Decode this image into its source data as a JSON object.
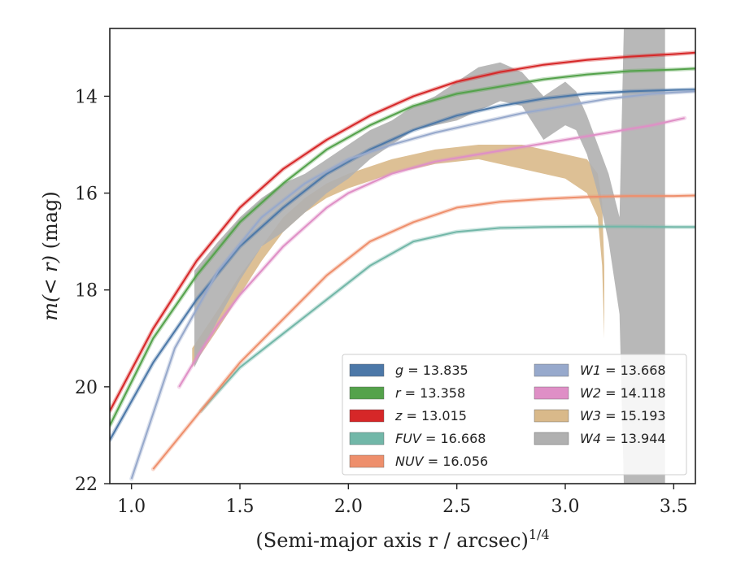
{
  "chart_data": {
    "type": "line",
    "xlabel": "(Semi-major axis r / arcsec)",
    "xlabel_exponent": "1/4",
    "ylabel_main": "m(< r)",
    "ylabel_unit": " (mag)",
    "xlim": [
      0.9,
      3.6
    ],
    "ylim": [
      22,
      12.6
    ],
    "y_inverted": true,
    "x_ticks": [
      "1.0",
      "1.5",
      "2.0",
      "2.5",
      "3.0",
      "3.5"
    ],
    "x_tick_values": [
      1.0,
      1.5,
      2.0,
      2.5,
      3.0,
      3.5
    ],
    "y_ticks": [
      "14",
      "16",
      "18",
      "20",
      "22"
    ],
    "y_tick_values": [
      14,
      16,
      18,
      20,
      22
    ],
    "legend_position": "lower-right",
    "series": [
      {
        "name": "g = 13.835",
        "label_var": "g",
        "label_val": "13.835",
        "kind": "line",
        "color": "#4c78a8",
        "x": [
          0.9,
          1.1,
          1.3,
          1.5,
          1.7,
          1.9,
          2.1,
          2.3,
          2.5,
          2.7,
          2.9,
          3.1,
          3.3,
          3.5,
          3.6
        ],
        "y": [
          21.1,
          19.5,
          18.2,
          17.1,
          16.3,
          15.6,
          15.1,
          14.7,
          14.4,
          14.2,
          14.05,
          13.95,
          13.9,
          13.87,
          13.86
        ]
      },
      {
        "name": "r = 13.358",
        "label_var": "r",
        "label_val": "13.358",
        "kind": "line",
        "color": "#54a24b",
        "x": [
          0.9,
          1.1,
          1.3,
          1.5,
          1.7,
          1.9,
          2.1,
          2.3,
          2.5,
          2.7,
          2.9,
          3.1,
          3.3,
          3.5,
          3.6
        ],
        "y": [
          20.8,
          19.0,
          17.7,
          16.6,
          15.8,
          15.1,
          14.6,
          14.2,
          13.95,
          13.8,
          13.65,
          13.55,
          13.48,
          13.45,
          13.43
        ]
      },
      {
        "name": "z = 13.015",
        "label_var": "z",
        "label_val": "13.015",
        "kind": "line",
        "color": "#d62728",
        "x": [
          0.9,
          1.1,
          1.3,
          1.5,
          1.7,
          1.9,
          2.1,
          2.3,
          2.5,
          2.7,
          2.9,
          3.1,
          3.3,
          3.5,
          3.6
        ],
        "y": [
          20.5,
          18.8,
          17.4,
          16.3,
          15.5,
          14.9,
          14.4,
          14.0,
          13.7,
          13.5,
          13.35,
          13.25,
          13.18,
          13.13,
          13.1
        ]
      },
      {
        "name": "FUV = 16.668",
        "label_var": "FUV",
        "label_val": "16.668",
        "kind": "line",
        "color": "#72b7a8",
        "x": [
          1.32,
          1.5,
          1.7,
          1.9,
          2.1,
          2.3,
          2.5,
          2.7,
          2.9,
          3.1,
          3.3,
          3.5,
          3.6
        ],
        "y": [
          20.5,
          19.6,
          18.9,
          18.2,
          17.5,
          17.0,
          16.8,
          16.72,
          16.7,
          16.69,
          16.69,
          16.7,
          16.7
        ]
      },
      {
        "name": "NUV = 16.056",
        "label_var": "NUV",
        "label_val": "16.056",
        "kind": "line",
        "color": "#ee8f6c",
        "x": [
          1.1,
          1.3,
          1.5,
          1.7,
          1.9,
          2.1,
          2.3,
          2.5,
          2.7,
          2.9,
          3.1,
          3.3,
          3.5,
          3.6
        ],
        "y": [
          21.7,
          20.6,
          19.5,
          18.6,
          17.7,
          17.0,
          16.6,
          16.3,
          16.18,
          16.12,
          16.08,
          16.06,
          16.06,
          16.05
        ]
      },
      {
        "name": "W1 = 13.668",
        "label_var": "W1",
        "label_val": "13.668",
        "kind": "line",
        "color": "#97a9cc",
        "x": [
          1.0,
          1.2,
          1.4,
          1.6,
          1.8,
          2.0,
          2.2,
          2.4,
          2.6,
          2.8,
          3.0,
          3.2,
          3.4,
          3.6
        ],
        "y": [
          21.9,
          19.2,
          17.6,
          16.5,
          15.8,
          15.3,
          15.0,
          14.75,
          14.55,
          14.35,
          14.2,
          14.05,
          13.95,
          13.9
        ]
      },
      {
        "name": "W2 = 14.118",
        "label_var": "W2",
        "label_val": "14.118",
        "kind": "line",
        "color": "#df8fc6",
        "x": [
          1.22,
          1.3,
          1.4,
          1.5,
          1.6,
          1.7,
          1.8,
          1.9,
          2.0,
          2.2,
          2.4,
          2.6,
          2.8,
          3.0,
          3.2,
          3.4,
          3.55
        ],
        "y": [
          20.0,
          19.4,
          18.7,
          18.1,
          17.6,
          17.1,
          16.7,
          16.3,
          16.0,
          15.6,
          15.35,
          15.2,
          15.05,
          14.9,
          14.75,
          14.6,
          14.45
        ]
      },
      {
        "name": "W3 = 15.193",
        "label_var": "W3",
        "label_val": "15.193",
        "kind": "band",
        "color": "#d9b98a",
        "x": [
          1.28,
          1.4,
          1.5,
          1.6,
          1.7,
          1.8,
          1.9,
          2.0,
          2.2,
          2.4,
          2.6,
          2.8,
          3.0,
          3.1,
          3.15,
          3.17,
          3.18
        ],
        "y_lo": [
          19.6,
          18.8,
          18.1,
          17.4,
          16.8,
          16.4,
          16.1,
          15.9,
          15.6,
          15.4,
          15.3,
          15.5,
          15.7,
          16.0,
          16.5,
          17.5,
          19.0
        ],
        "y_hi": [
          19.2,
          18.4,
          17.7,
          17.1,
          16.5,
          16.1,
          15.8,
          15.6,
          15.3,
          15.1,
          15.0,
          15.0,
          15.2,
          15.3,
          15.6,
          16.2,
          17.5
        ]
      },
      {
        "name": "W4 = 13.944",
        "label_var": "W4",
        "label_val": "13.944",
        "kind": "band",
        "color": "#b0b0b0",
        "x": [
          1.29,
          1.4,
          1.5,
          1.6,
          1.7,
          1.8,
          1.9,
          2.0,
          2.1,
          2.2,
          2.3,
          2.4,
          2.5,
          2.6,
          2.7,
          2.8,
          2.9,
          3.0,
          3.05,
          3.1,
          3.15,
          3.2,
          3.25,
          3.27,
          3.3,
          3.35,
          3.4,
          3.44,
          3.46
        ],
        "y_lo": [
          19.6,
          18.6,
          17.8,
          17.1,
          16.8,
          16.4,
          16.0,
          15.7,
          15.3,
          15.0,
          14.7,
          14.6,
          14.5,
          14.3,
          14.1,
          14.2,
          14.9,
          14.6,
          14.7,
          15.2,
          16.0,
          17.0,
          18.5,
          22,
          22,
          22,
          22,
          22,
          22
        ],
        "y_hi": [
          17.6,
          17.0,
          16.5,
          16.1,
          15.8,
          15.6,
          15.3,
          15.0,
          14.7,
          14.5,
          14.2,
          14.0,
          13.7,
          13.4,
          13.3,
          13.5,
          14.0,
          13.7,
          13.9,
          14.4,
          15.0,
          15.6,
          16.5,
          12.6,
          12.6,
          12.6,
          12.6,
          12.6,
          12.6
        ]
      }
    ]
  }
}
